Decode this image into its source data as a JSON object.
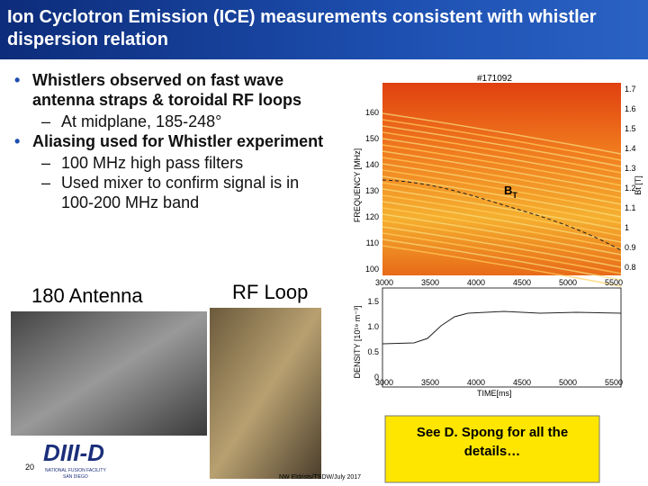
{
  "header": {
    "title": "Ion Cyclotron Emission (ICE) measurements consistent with whistler dispersion relation"
  },
  "bullets": [
    {
      "text": "Whistlers observed on fast wave antenna straps & toroidal RF loops",
      "sub": [
        "At midplane, 185-248°"
      ]
    },
    {
      "text": "Aliasing used for Whistler experiment",
      "sub": [
        "100 MHz high pass filters",
        "Used mixer to confirm signal is in 100-200 MHz  band"
      ]
    }
  ],
  "photos": [
    {
      "label": "180 Antenna"
    },
    {
      "label": "RF Loop"
    }
  ],
  "spectrogram": {
    "shot": "#171092",
    "ylabel": "FREQUENCY [MHz]",
    "y2label": "Bt [T]",
    "annotation": {
      "main": "B",
      "sub": "T"
    },
    "yticks": [
      160,
      150,
      140,
      130,
      120,
      110,
      100
    ],
    "y2ticks": [
      1.7,
      1.6,
      1.5,
      1.4,
      1.3,
      1.2,
      1.1,
      1.0,
      0.9,
      0.8
    ],
    "xticks": [
      3000,
      3500,
      4000,
      4500,
      5000,
      5500
    ]
  },
  "density": {
    "ylabel": "DENSITY [10¹⁹ m⁻³]",
    "xlabel": "TIME[ms]",
    "yticks": [
      "1.5",
      "1.0",
      "0.5",
      "0"
    ],
    "xticks": [
      3000,
      3500,
      4000,
      4500,
      5000,
      5500
    ]
  },
  "callout": "See D. Spong for all the details…",
  "logo": {
    "name": "DIII-D",
    "line1": "NATIONAL FUSION FACILITY",
    "line2": "SAN DIEGO"
  },
  "footer": {
    "page": "20",
    "credit": "NW Eldrists/TSDW/July 2017"
  }
}
